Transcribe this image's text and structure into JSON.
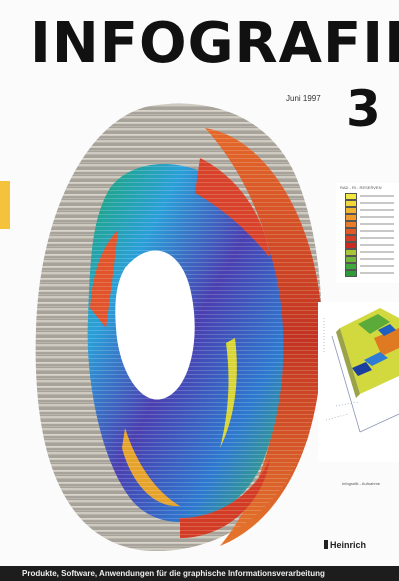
{
  "cover": {
    "masthead": "INFOGRAFIK",
    "issue_date": "Juni 1997",
    "issue_number": "3",
    "publisher": "Heinrich",
    "footer_text": "Produkte, Software, Anwendungen für die graphische Informationsverarbeitung",
    "accent_color": "#f5c33b"
  },
  "legend": {
    "title": "RAD - RI - RESERVEN"
  },
  "mini_chart": {
    "caption": "Infografik - Aufnahme"
  }
}
